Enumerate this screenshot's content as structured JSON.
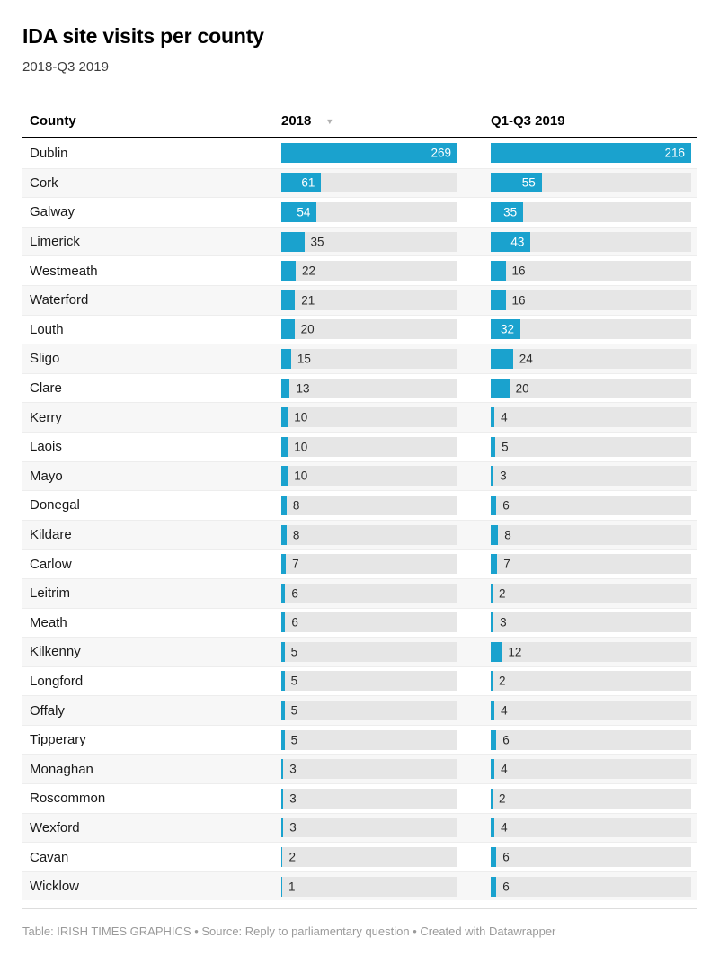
{
  "header": {
    "title": "IDA site visits per county",
    "subtitle": "2018-Q3 2019"
  },
  "table": {
    "county_header": "County",
    "sort_icon": "▼",
    "sorted_column": "2018",
    "sort_direction": "descending"
  },
  "footer": {
    "text": "Table: IRISH TIMES GRAPHICS • Source: Reply to parliamentary question • Created with Datawrapper"
  },
  "colors": {
    "bar": "#1aa2ce",
    "track": "#e6e6e6",
    "row_alt": "#f7f7f7",
    "header_border": "#000000",
    "value_inside": "#ffffff",
    "value_outside": "#2b2b2b",
    "footer_text": "#9a9a9a"
  },
  "chart_data": {
    "type": "bar",
    "orientation": "horizontal",
    "title": "IDA site visits per county",
    "subtitle": "2018-Q3 2019",
    "legend": "none",
    "grid": false,
    "layout_hint": "two bar columns inside a table; each column independently scaled so its max value fills the track",
    "column_max": [
      269,
      216
    ],
    "categories": [
      "Dublin",
      "Cork",
      "Galway",
      "Limerick",
      "Westmeath",
      "Waterford",
      "Louth",
      "Sligo",
      "Clare",
      "Kerry",
      "Laois",
      "Mayo",
      "Donegal",
      "Kildare",
      "Carlow",
      "Leitrim",
      "Meath",
      "Kilkenny",
      "Longford",
      "Offaly",
      "Tipperary",
      "Monaghan",
      "Roscommon",
      "Wexford",
      "Cavan",
      "Wicklow"
    ],
    "series": [
      {
        "name": "2018",
        "values": [
          269,
          61,
          54,
          35,
          22,
          21,
          20,
          15,
          13,
          10,
          10,
          10,
          8,
          8,
          7,
          6,
          6,
          5,
          5,
          5,
          5,
          3,
          3,
          3,
          2,
          1
        ]
      },
      {
        "name": "Q1-Q3 2019",
        "values": [
          216,
          55,
          35,
          43,
          16,
          16,
          32,
          24,
          20,
          4,
          5,
          3,
          6,
          8,
          7,
          2,
          3,
          12,
          2,
          4,
          6,
          4,
          2,
          4,
          6,
          6
        ]
      }
    ]
  }
}
